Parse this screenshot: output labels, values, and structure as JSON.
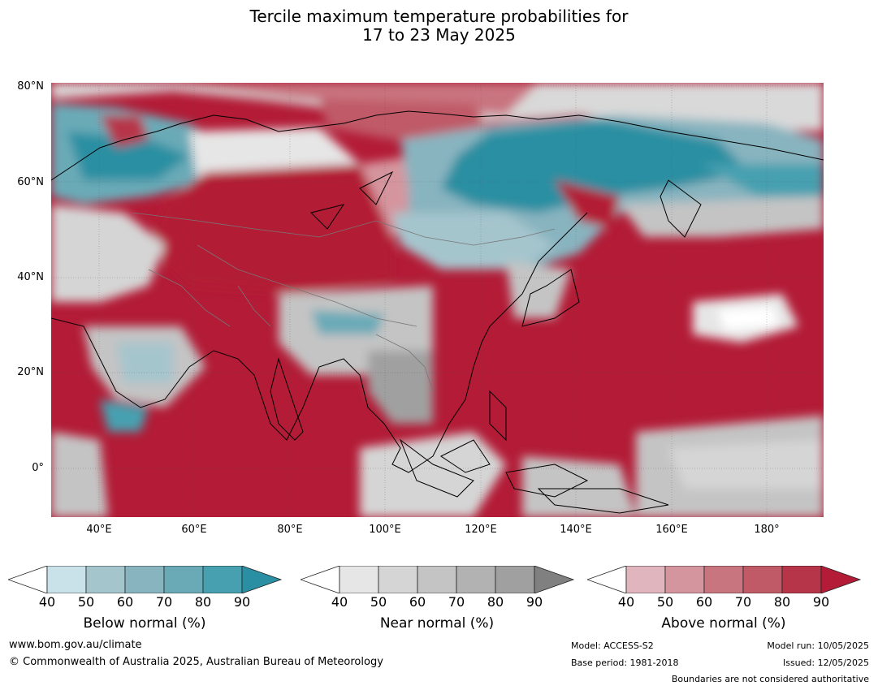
{
  "title": {
    "line1": "Tercile maximum temperature probabilities for",
    "line2": "17 to 23 May 2025"
  },
  "axes": {
    "lat_labels": [
      "80°N",
      "60°N",
      "40°N",
      "20°N",
      "0°"
    ],
    "lon_labels": [
      "40°E",
      "60°E",
      "80°E",
      "100°E",
      "120°E",
      "140°E",
      "160°E",
      "180°"
    ]
  },
  "colors": {
    "ocean_above": "#b31b36",
    "below_scale": [
      "#ffffff",
      "#c9e1e8",
      "#a5c5cd",
      "#88b4bf",
      "#6aaab7",
      "#46a0b0",
      "#2a8fa2"
    ],
    "near_scale": [
      "#ffffff",
      "#e6e6e6",
      "#d5d5d5",
      "#c4c4c4",
      "#b2b2b2",
      "#a0a0a0",
      "#808080"
    ],
    "above_scale": [
      "#ffffff",
      "#e0b5bd",
      "#d5959e",
      "#c97580",
      "#c05a67",
      "#b73548",
      "#b31b36"
    ]
  },
  "colorbars": [
    {
      "ticks": [
        "40",
        "50",
        "60",
        "70",
        "80",
        "90"
      ],
      "label": "Below normal (%)"
    },
    {
      "ticks": [
        "40",
        "50",
        "60",
        "70",
        "80",
        "90"
      ],
      "label": "Near normal (%)"
    },
    {
      "ticks": [
        "40",
        "50",
        "60",
        "70",
        "80",
        "90"
      ],
      "label": "Above normal (%)"
    }
  ],
  "footer": {
    "url": "www.bom.gov.au/climate",
    "copyright": "© Commonwealth of Australia 2025, Australian Bureau of Meteorology",
    "model": "Model: ACCESS-S2",
    "base_period": "Base period: 1981-2018",
    "model_run": "Model run: 10/05/2025",
    "issued": "Issued: 12/05/2025",
    "disclaimer": "Boundaries are not considered authoritative"
  }
}
